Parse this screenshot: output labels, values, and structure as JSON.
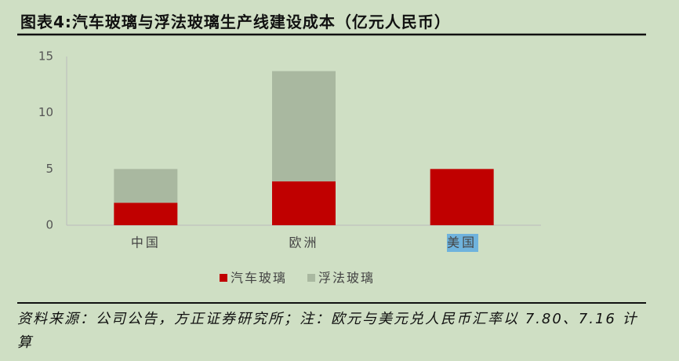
{
  "chart_data": {
    "type": "bar",
    "stacked": true,
    "title": "图表4:汽车玻璃与浮法玻璃生产线建设成本（亿元人民币）",
    "categories": [
      "中国",
      "欧洲",
      "美国"
    ],
    "series": [
      {
        "name": "汽车玻璃",
        "color": "#c00000",
        "values": [
          2,
          3.9,
          5
        ]
      },
      {
        "name": "浮法玻璃",
        "color": "#a9b8a0",
        "values": [
          3,
          9.8,
          null
        ]
      }
    ],
    "ylim": [
      0,
      15
    ],
    "yticks": [
      0,
      5,
      10,
      15
    ],
    "grid": false,
    "note": "资料来源：公司公告，方正证券研究所；注：欧元与美元兑人民币汇率以 7.80、7.16 计算"
  }
}
